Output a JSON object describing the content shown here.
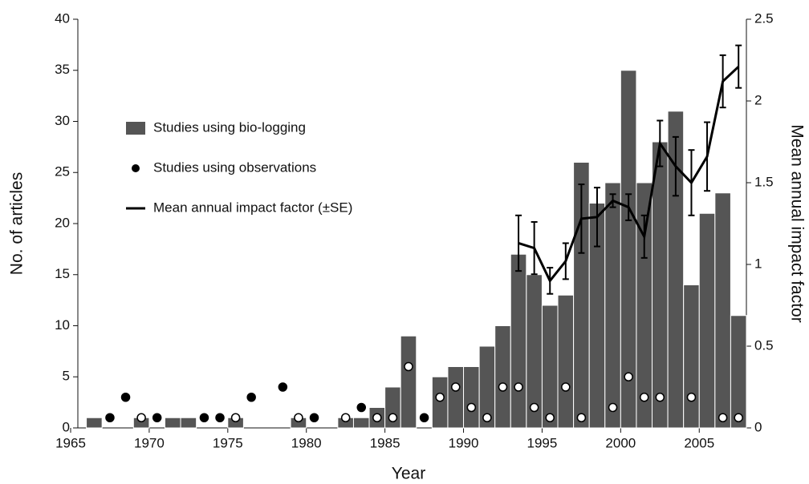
{
  "chart_data": {
    "type": "bar",
    "xlabel": "Year",
    "ylabel": "No. of articles",
    "y2label": "Mean annual impact factor",
    "xlim": [
      1965,
      2008
    ],
    "xticks": [
      1965,
      1970,
      1975,
      1980,
      1985,
      1990,
      1995,
      2000,
      2005
    ],
    "ylim": [
      0,
      40
    ],
    "yticks": [
      0,
      5,
      10,
      15,
      20,
      25,
      30,
      35,
      40
    ],
    "y2lim": [
      0,
      2.5
    ],
    "y2ticks": [
      0,
      0.5,
      1,
      1.5,
      2,
      2.5
    ],
    "legend": "upper left",
    "series": [
      {
        "name": "Studies using bio-logging",
        "type": "bar",
        "color": "#555555",
        "x": [
          1966,
          1969,
          1971,
          1972,
          1975,
          1979,
          1982,
          1983,
          1984,
          1985,
          1986,
          1988,
          1989,
          1990,
          1991,
          1992,
          1993,
          1994,
          1995,
          1996,
          1997,
          1998,
          1999,
          2000,
          2001,
          2002,
          2003,
          2004,
          2005,
          2006,
          2007
        ],
        "values": [
          1,
          1,
          1,
          1,
          1,
          1,
          1,
          1,
          2,
          4,
          9,
          5,
          6,
          6,
          8,
          10,
          17,
          15,
          12,
          13,
          26,
          22,
          24,
          35,
          24,
          28,
          31,
          14,
          21,
          23,
          11
        ]
      },
      {
        "name": "Studies using observations",
        "type": "scatter",
        "color": "#000000",
        "x": [
          1967,
          1968,
          1969,
          1970,
          1973,
          1974,
          1975,
          1976,
          1978,
          1979,
          1980,
          1982,
          1983,
          1984,
          1985,
          1986,
          1987,
          1988,
          1989,
          1990,
          1991,
          1992,
          1993,
          1994,
          1995,
          1996,
          1997,
          1999,
          2000,
          2001,
          2002,
          2004,
          2006,
          2007
        ],
        "values": [
          1,
          3,
          1,
          1,
          1,
          1,
          1,
          3,
          4,
          1,
          1,
          1,
          2,
          1,
          1,
          6,
          1,
          3,
          4,
          2,
          1,
          4,
          4,
          2,
          1,
          4,
          1,
          2,
          5,
          3,
          3,
          3,
          1,
          1
        ]
      },
      {
        "name": "Mean annual impact factor (±SE)",
        "type": "line",
        "color": "#000000",
        "axis": "y2",
        "x": [
          1993,
          1994,
          1995,
          1996,
          1997,
          1998,
          1999,
          2000,
          2001,
          2002,
          2003,
          2004,
          2005,
          2006,
          2007
        ],
        "values": [
          1.13,
          1.1,
          0.9,
          1.02,
          1.28,
          1.29,
          1.39,
          1.35,
          1.17,
          1.74,
          1.6,
          1.5,
          1.66,
          2.12,
          2.21
        ],
        "errors": [
          0.17,
          0.16,
          0.08,
          0.11,
          0.21,
          0.18,
          0.04,
          0.08,
          0.13,
          0.14,
          0.18,
          0.2,
          0.21,
          0.16,
          0.13
        ]
      }
    ]
  }
}
